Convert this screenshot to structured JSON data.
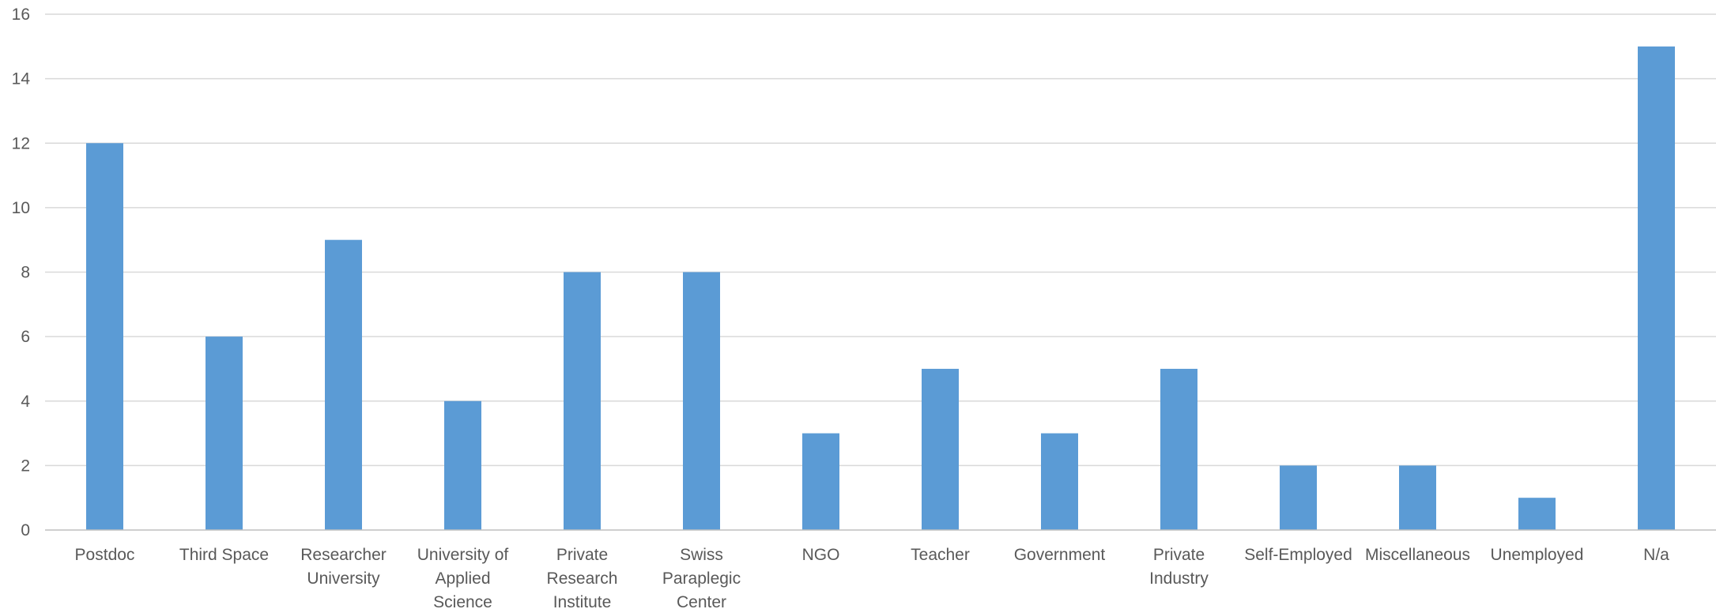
{
  "chart_data": {
    "type": "bar",
    "title": "",
    "xlabel": "",
    "ylabel": "",
    "categories": [
      "Postdoc",
      "Third Space",
      "Researcher University",
      "University of Applied Science",
      "Private Research Institute",
      "Swiss Paraplegic Center",
      "NGO",
      "Teacher",
      "Government",
      "Private Industry",
      "Self-Employed",
      "Miscellaneous",
      "Unemployed",
      "N/a"
    ],
    "category_lines": [
      [
        "Postdoc"
      ],
      [
        "Third Space"
      ],
      [
        "Researcher",
        "University"
      ],
      [
        "University of",
        "Applied",
        "Science"
      ],
      [
        "Private",
        "Research",
        "Institute"
      ],
      [
        "Swiss",
        "Paraplegic",
        "Center"
      ],
      [
        "NGO"
      ],
      [
        "Teacher"
      ],
      [
        "Government"
      ],
      [
        "Private",
        "Industry"
      ],
      [
        "Self-Employed"
      ],
      [
        "Miscellaneous"
      ],
      [
        "Unemployed"
      ],
      [
        "N/a"
      ]
    ],
    "values": [
      12,
      6,
      9,
      4,
      8,
      8,
      3,
      5,
      3,
      5,
      2,
      2,
      1,
      15
    ],
    "ylim": [
      0,
      16
    ],
    "yticks": [
      0,
      2,
      4,
      6,
      8,
      10,
      12,
      14,
      16
    ],
    "grid": true,
    "legend": "none",
    "bar_color": "#5b9bd5"
  }
}
